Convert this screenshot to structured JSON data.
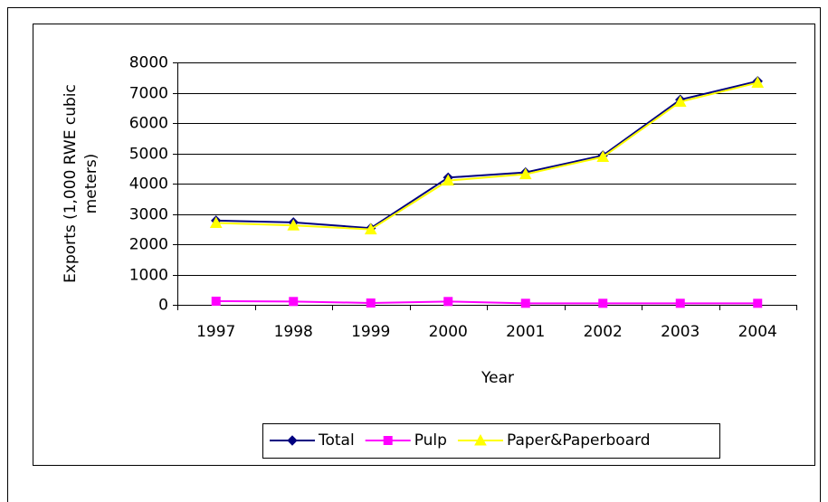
{
  "chart_data": {
    "type": "line",
    "x_label": "Year",
    "y_label": [
      "Exports (1,000 RWE cubic",
      "meters)"
    ],
    "categories": [
      "1997",
      "1998",
      "1999",
      "2000",
      "2001",
      "2002",
      "2003",
      "2004"
    ],
    "series": [
      {
        "name": "Total",
        "color": "#000080",
        "marker": "diamond",
        "values": [
          2780,
          2720,
          2530,
          4200,
          4370,
          4930,
          6770,
          7380
        ]
      },
      {
        "name": "Pulp",
        "color": "#FF00FF",
        "marker": "square",
        "values": [
          120,
          110,
          60,
          110,
          50,
          50,
          50,
          50
        ]
      },
      {
        "name": "Paper&Paperboard",
        "color": "#FFFF00",
        "marker": "triangle",
        "values": [
          2700,
          2620,
          2490,
          4100,
          4310,
          4880,
          6700,
          7330
        ]
      }
    ],
    "ylim": [
      0,
      8000
    ],
    "yticks": [
      0,
      1000,
      2000,
      3000,
      4000,
      5000,
      6000,
      7000,
      8000
    ],
    "grid": true,
    "legend": "bottom"
  }
}
